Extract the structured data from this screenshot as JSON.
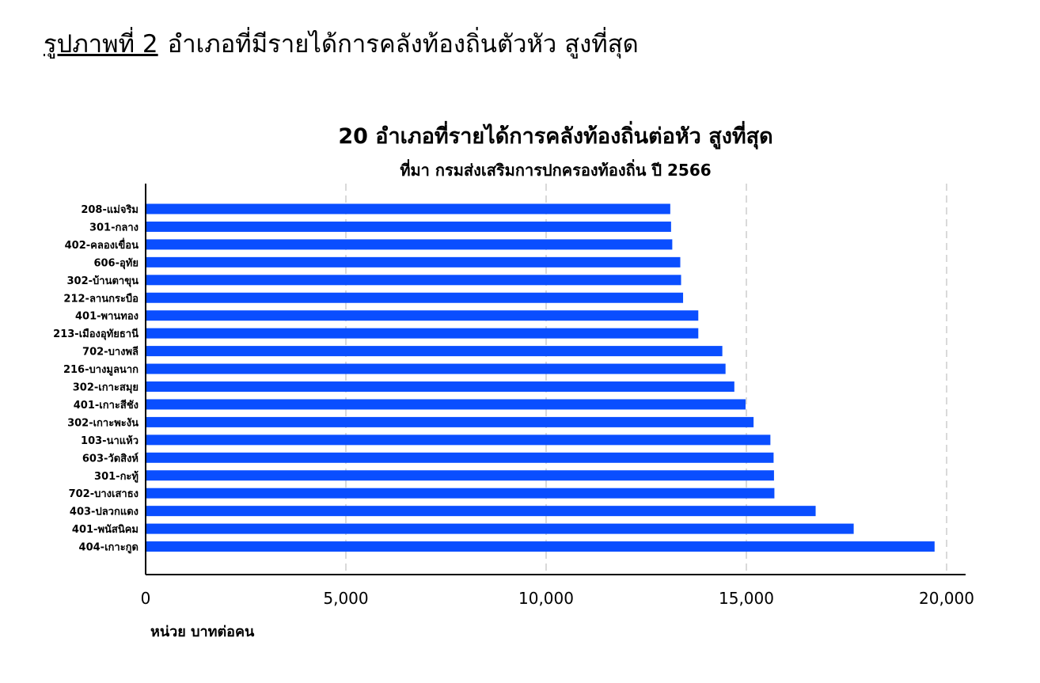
{
  "figure": {
    "number_label": "รูปภาพที่ 2",
    "caption": "อำเภอที่มีรายได้การคลังท้องถิ่นตัวหัว สูงที่สุด"
  },
  "colors": {
    "bar": "#0A4EFF",
    "grid": "#d9d9d9",
    "axis": "#000000"
  },
  "chart_data": {
    "type": "bar",
    "orientation": "horizontal",
    "title": "20 อำเภอที่รายได้การคลังท้องถิ่นต่อหัว สูงที่สุด",
    "subtitle": "ที่มา กรมส่งเสริมการปกครองท้องถิ่น ปี 2566",
    "xlabel": "หน่วย บาทต่อคน",
    "ylabel": "",
    "xlim": [
      0,
      20500
    ],
    "xticks": [
      0,
      5000,
      10000,
      15000,
      20000
    ],
    "xtick_labels": [
      "0",
      "5,000",
      "10,000",
      "15,000",
      "20,000"
    ],
    "grid": "vertical dashed",
    "legend": "none",
    "categories": [
      "208-แม่จริม",
      "301-กลาง",
      "402-คลองเขื่อน",
      "606-อุทัย",
      "302-บ้านตาขุน",
      "212-ลานกระบือ",
      "401-พานทอง",
      "213-เมืองอุทัยธานี",
      "702-บางพลี",
      "216-บางมูลนาก",
      "302-เกาะสมุย",
      "401-เกาะสีชัง",
      "302-เกาะพะงัน",
      "103-นาแห้ว",
      "603-วัดสิงห์",
      "301-กะทู้",
      "702-บางเสาธง",
      "403-ปลวกแดง",
      "401-พนัสนิคม",
      "404-เกาะกูด"
    ],
    "values": [
      13100,
      13120,
      13150,
      13350,
      13370,
      13420,
      13800,
      13800,
      14400,
      14480,
      14700,
      14980,
      15180,
      15600,
      15680,
      15690,
      15700,
      16730,
      17680,
      19700
    ]
  }
}
